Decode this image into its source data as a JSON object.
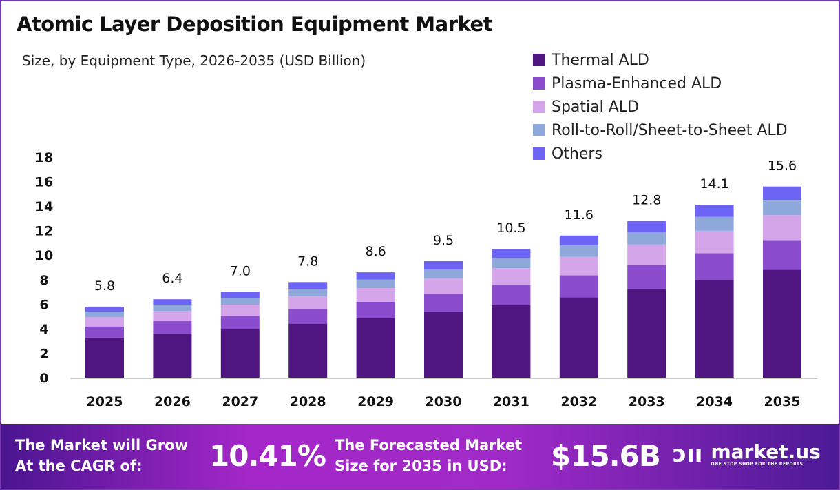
{
  "chart_data": {
    "type": "bar",
    "stacked": true,
    "title": "Atomic Layer Deposition Equipment Market",
    "subtitle": "Size, by Equipment Type, 2026-2035 (USD Billion)",
    "categories": [
      "2025",
      "2026",
      "2027",
      "2028",
      "2029",
      "2030",
      "2031",
      "2032",
      "2033",
      "2034",
      "2035"
    ],
    "totals": [
      "5.8",
      "6.4",
      "7.0",
      "7.8",
      "8.6",
      "9.5",
      "10.5",
      "11.6",
      "12.8",
      "14.1",
      "15.6"
    ],
    "series": [
      {
        "name": "Thermal ALD",
        "color": "#4f1580",
        "values": [
          3.28,
          3.62,
          3.96,
          4.41,
          4.86,
          5.37,
          5.93,
          6.55,
          7.23,
          7.97,
          8.81
        ]
      },
      {
        "name": "Plasma-Enhanced ALD",
        "color": "#8a4ccc",
        "values": [
          0.9,
          0.99,
          1.09,
          1.21,
          1.33,
          1.47,
          1.63,
          1.8,
          1.98,
          2.19,
          2.42
        ]
      },
      {
        "name": "Spatial ALD",
        "color": "#d4a5e8",
        "values": [
          0.75,
          0.83,
          0.91,
          1.01,
          1.12,
          1.24,
          1.37,
          1.51,
          1.66,
          1.83,
          2.03
        ]
      },
      {
        "name": "Roll-to-Roll/Sheet-to-Sheet ALD",
        "color": "#8fa8dc",
        "values": [
          0.46,
          0.51,
          0.56,
          0.62,
          0.69,
          0.76,
          0.84,
          0.93,
          1.02,
          1.13,
          1.25
        ]
      },
      {
        "name": "Others",
        "color": "#6d63f5",
        "values": [
          0.41,
          0.45,
          0.49,
          0.55,
          0.6,
          0.67,
          0.74,
          0.81,
          0.9,
          0.99,
          1.09
        ]
      }
    ],
    "yticks": [
      "0",
      "2",
      "4",
      "6",
      "8",
      "10",
      "12",
      "14",
      "16",
      "18"
    ],
    "ylim": [
      0,
      18
    ],
    "xlabel": "",
    "ylabel": "",
    "grid": false,
    "legend": "top-right"
  },
  "footer": {
    "cagr_label_line1": "The Market will Grow",
    "cagr_label_line2": "At the CAGR of:",
    "cagr_value": "10.41%",
    "forecast_label_line1": "The Forecasted Market",
    "forecast_label_line2": "Size for 2035 in USD:",
    "forecast_value": "$15.6B",
    "brand": "market.us",
    "brand_tagline": "ONE STOP SHOP FOR THE REPORTS"
  }
}
